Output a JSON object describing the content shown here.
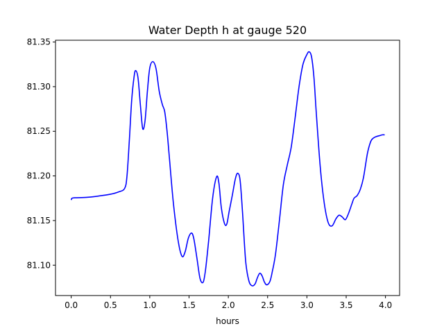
{
  "chart_data": {
    "type": "line",
    "title": "Water Depth h at gauge 520",
    "xlabel": "hours",
    "ylabel": "",
    "xlim": [
      -0.2,
      4.18
    ],
    "ylim": [
      81.066,
      81.352
    ],
    "grid": false,
    "line_color": "#0000ff",
    "x_ticks": [
      {
        "value": 0.0,
        "label": "0.0"
      },
      {
        "value": 0.5,
        "label": "0.5"
      },
      {
        "value": 1.0,
        "label": "1.0"
      },
      {
        "value": 1.5,
        "label": "1.5"
      },
      {
        "value": 2.0,
        "label": "2.0"
      },
      {
        "value": 2.5,
        "label": "2.5"
      },
      {
        "value": 3.0,
        "label": "3.0"
      },
      {
        "value": 3.5,
        "label": "3.5"
      },
      {
        "value": 4.0,
        "label": "4.0"
      }
    ],
    "y_ticks": [
      {
        "value": 81.1,
        "label": "81.10"
      },
      {
        "value": 81.15,
        "label": "81.15"
      },
      {
        "value": 81.2,
        "label": "81.20"
      },
      {
        "value": 81.25,
        "label": "81.25"
      },
      {
        "value": 81.3,
        "label": "81.30"
      },
      {
        "value": 81.35,
        "label": "81.35"
      }
    ],
    "series": [
      {
        "x": [
          0.0,
          0.01,
          0.05,
          0.2,
          0.35,
          0.5,
          0.6,
          0.68,
          0.71,
          0.74,
          0.77,
          0.8,
          0.82,
          0.85,
          0.88,
          0.91,
          0.94,
          0.97,
          1.0,
          1.04,
          1.08,
          1.12,
          1.16,
          1.19,
          1.22,
          1.25,
          1.3,
          1.36,
          1.41,
          1.45,
          1.49,
          1.53,
          1.56,
          1.6,
          1.64,
          1.68,
          1.71,
          1.75,
          1.8,
          1.85,
          1.88,
          1.91,
          1.95,
          1.98,
          2.01,
          2.05,
          2.09,
          2.12,
          2.15,
          2.18,
          2.22,
          2.26,
          2.3,
          2.34,
          2.37,
          2.4,
          2.43,
          2.46,
          2.49,
          2.53,
          2.56,
          2.6,
          2.65,
          2.7,
          2.75,
          2.8,
          2.85,
          2.9,
          2.95,
          3.0,
          3.03,
          3.06,
          3.09,
          3.12,
          3.17,
          3.22,
          3.27,
          3.32,
          3.37,
          3.41,
          3.45,
          3.49,
          3.53,
          3.57,
          3.6,
          3.64,
          3.68,
          3.72,
          3.77,
          3.81,
          3.84,
          3.88,
          3.92,
          3.96,
          3.99
        ],
        "y": [
          81.173,
          81.175,
          81.1755,
          81.176,
          81.1775,
          81.1795,
          81.182,
          81.186,
          81.2,
          81.24,
          81.285,
          81.311,
          81.318,
          81.31,
          81.28,
          81.253,
          81.262,
          81.295,
          81.321,
          81.328,
          81.32,
          81.295,
          81.28,
          81.272,
          81.25,
          81.22,
          81.17,
          81.128,
          81.11,
          81.115,
          81.13,
          81.136,
          81.13,
          81.108,
          81.085,
          81.081,
          81.095,
          81.128,
          81.175,
          81.199,
          81.192,
          81.165,
          81.147,
          81.146,
          81.16,
          81.178,
          81.197,
          81.203,
          81.195,
          81.16,
          81.105,
          81.083,
          81.077,
          81.079,
          81.086,
          81.091,
          81.088,
          81.081,
          81.078,
          81.082,
          81.093,
          81.112,
          81.15,
          81.19,
          81.212,
          81.232,
          81.265,
          81.3,
          81.325,
          81.336,
          81.339,
          81.333,
          81.31,
          81.27,
          81.21,
          81.17,
          81.148,
          81.144,
          81.152,
          81.156,
          81.154,
          81.151,
          81.158,
          81.168,
          81.175,
          81.178,
          81.185,
          81.198,
          81.225,
          81.238,
          81.242,
          81.244,
          81.245,
          81.246,
          81.246
        ]
      }
    ]
  }
}
